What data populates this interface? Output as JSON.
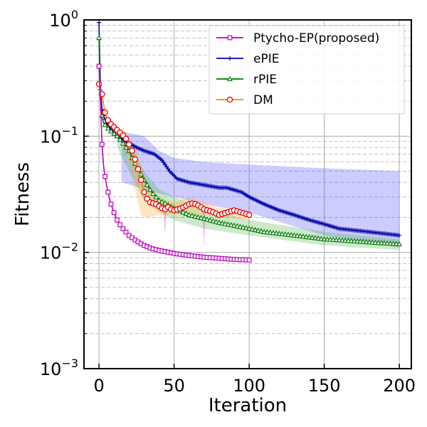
{
  "chart_data": {
    "type": "line",
    "title": "",
    "xlabel": "Iteration",
    "ylabel": "Fitness",
    "xlim": [
      -10,
      208
    ],
    "ylim": [
      0.001,
      1
    ],
    "yscale": "log",
    "xticks": [
      0,
      50,
      100,
      150,
      200
    ],
    "xtick_labels": [
      "0",
      "50",
      "100",
      "150",
      "200"
    ],
    "yticks": [
      0.001,
      0.01,
      0.1,
      1
    ],
    "ytick_labels": [
      {
        "base": "10",
        "exp": "−3"
      },
      {
        "base": "10",
        "exp": "−2"
      },
      {
        "base": "10",
        "exp": "−1"
      },
      {
        "base": "10",
        "exp": "0"
      }
    ],
    "ytick_top_label": "10",
    "grid": true,
    "legend_position": "top-right",
    "series": [
      {
        "name": "Ptycho-EP(proposed)",
        "color": "#bf00bf",
        "marker": "square",
        "x_end": 100,
        "points": [
          [
            0,
            0.4
          ],
          [
            1,
            0.2
          ],
          [
            2,
            0.085
          ],
          [
            3,
            0.057
          ],
          [
            4,
            0.045
          ],
          [
            5,
            0.038
          ],
          [
            6,
            0.033
          ],
          [
            7,
            0.029
          ],
          [
            8,
            0.026
          ],
          [
            10,
            0.022
          ],
          [
            12,
            0.019
          ],
          [
            15,
            0.0165
          ],
          [
            20,
            0.014
          ],
          [
            25,
            0.0125
          ],
          [
            30,
            0.0115
          ],
          [
            35,
            0.0108
          ],
          [
            40,
            0.0104
          ],
          [
            50,
            0.0098
          ],
          [
            60,
            0.0094
          ],
          [
            70,
            0.0091
          ],
          [
            80,
            0.0089
          ],
          [
            90,
            0.0087
          ],
          [
            100,
            0.0086
          ]
        ],
        "band": null
      },
      {
        "name": "ePIE",
        "color": "#0000aa",
        "marker": "plus",
        "x_end": 200,
        "points": [
          [
            0,
            0.95
          ],
          [
            1,
            0.25
          ],
          [
            2,
            0.17
          ],
          [
            3,
            0.15
          ],
          [
            5,
            0.13
          ],
          [
            8,
            0.115
          ],
          [
            12,
            0.1
          ],
          [
            18,
            0.09
          ],
          [
            25,
            0.08
          ],
          [
            30,
            0.075
          ],
          [
            37,
            0.07
          ],
          [
            42,
            0.062
          ],
          [
            47,
            0.05
          ],
          [
            52,
            0.043
          ],
          [
            60,
            0.04
          ],
          [
            70,
            0.038
          ],
          [
            80,
            0.036
          ],
          [
            85,
            0.036
          ],
          [
            95,
            0.033
          ],
          [
            100,
            0.03
          ],
          [
            110,
            0.026
          ],
          [
            120,
            0.023
          ],
          [
            130,
            0.021
          ],
          [
            140,
            0.019
          ],
          [
            150,
            0.0175
          ],
          [
            160,
            0.016
          ],
          [
            170,
            0.0155
          ],
          [
            180,
            0.015
          ],
          [
            190,
            0.0145
          ],
          [
            200,
            0.014
          ]
        ],
        "band": [
          [
            15,
            0.04,
            0.11
          ],
          [
            30,
            0.035,
            0.1
          ],
          [
            40,
            0.032,
            0.075
          ],
          [
            50,
            0.03,
            0.065
          ],
          [
            70,
            0.026,
            0.06
          ],
          [
            100,
            0.022,
            0.057
          ],
          [
            150,
            0.014,
            0.053
          ],
          [
            200,
            0.011,
            0.05
          ]
        ]
      },
      {
        "name": "rPIE",
        "color": "#007700",
        "marker": "triangle",
        "x_end": 200,
        "points": [
          [
            0,
            0.7
          ],
          [
            1,
            0.2
          ],
          [
            2,
            0.15
          ],
          [
            3,
            0.13
          ],
          [
            5,
            0.12
          ],
          [
            8,
            0.11
          ],
          [
            12,
            0.1
          ],
          [
            15,
            0.09
          ],
          [
            18,
            0.08
          ],
          [
            20,
            0.075
          ],
          [
            22,
            0.065
          ],
          [
            25,
            0.055
          ],
          [
            28,
            0.047
          ],
          [
            30,
            0.042
          ],
          [
            35,
            0.033
          ],
          [
            40,
            0.028
          ],
          [
            45,
            0.026
          ],
          [
            50,
            0.024
          ],
          [
            60,
            0.021
          ],
          [
            70,
            0.0195
          ],
          [
            80,
            0.018
          ],
          [
            90,
            0.017
          ],
          [
            100,
            0.016
          ],
          [
            110,
            0.015
          ],
          [
            120,
            0.0145
          ],
          [
            130,
            0.014
          ],
          [
            140,
            0.0135
          ],
          [
            150,
            0.013
          ],
          [
            170,
            0.0125
          ],
          [
            185,
            0.0121
          ],
          [
            200,
            0.0118
          ]
        ],
        "band": [
          [
            12,
            0.08,
            0.12
          ],
          [
            20,
            0.05,
            0.09
          ],
          [
            30,
            0.028,
            0.05
          ],
          [
            40,
            0.022,
            0.035
          ],
          [
            50,
            0.019,
            0.03
          ],
          [
            70,
            0.016,
            0.024
          ],
          [
            100,
            0.014,
            0.019
          ],
          [
            150,
            0.0115,
            0.015
          ],
          [
            200,
            0.0105,
            0.013
          ]
        ]
      },
      {
        "name": "DM",
        "color": "#ff8800",
        "marker": "circle",
        "marker_edge": "#ee0000",
        "x_end": 100,
        "points": [
          [
            0,
            0.28
          ],
          [
            2,
            0.23
          ],
          [
            3,
            0.19
          ],
          [
            4,
            0.16
          ],
          [
            5,
            0.145
          ],
          [
            7,
            0.13
          ],
          [
            10,
            0.12
          ],
          [
            13,
            0.11
          ],
          [
            15,
            0.105
          ],
          [
            18,
            0.095
          ],
          [
            20,
            0.085
          ],
          [
            22,
            0.075
          ],
          [
            25,
            0.058
          ],
          [
            28,
            0.042
          ],
          [
            30,
            0.033
          ],
          [
            32,
            0.029
          ],
          [
            34,
            0.027
          ],
          [
            36,
            0.0265
          ],
          [
            38,
            0.026
          ],
          [
            40,
            0.025
          ],
          [
            42,
            0.024
          ],
          [
            44,
            0.0235
          ],
          [
            46,
            0.0245
          ],
          [
            48,
            0.0235
          ],
          [
            50,
            0.023
          ],
          [
            55,
            0.024
          ],
          [
            60,
            0.026
          ],
          [
            63,
            0.0265
          ],
          [
            67,
            0.025
          ],
          [
            70,
            0.0235
          ],
          [
            75,
            0.0225
          ],
          [
            80,
            0.021
          ],
          [
            85,
            0.022
          ],
          [
            90,
            0.023
          ],
          [
            95,
            0.022
          ],
          [
            100,
            0.021
          ]
        ],
        "band": [
          [
            15,
            0.09,
            0.12
          ],
          [
            20,
            0.06,
            0.1
          ],
          [
            25,
            0.03,
            0.075
          ],
          [
            28,
            0.021,
            0.055
          ],
          [
            32,
            0.02,
            0.04
          ],
          [
            40,
            0.021,
            0.03
          ],
          [
            50,
            0.021,
            0.027
          ],
          [
            60,
            0.022,
            0.03
          ],
          [
            70,
            0.021,
            0.027
          ],
          [
            80,
            0.02,
            0.024
          ],
          [
            100,
            0.019,
            0.023
          ]
        ],
        "spikes": [
          [
            44,
            0.014
          ],
          [
            70,
            0.011
          ]
        ]
      }
    ]
  }
}
